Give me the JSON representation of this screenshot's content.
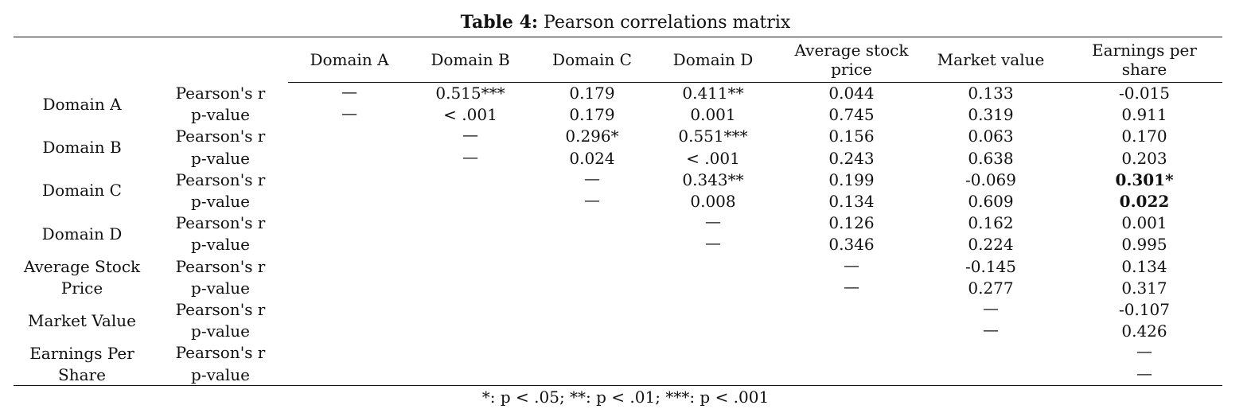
{
  "caption": {
    "label": "Table 4:",
    "title": " Pearson correlations matrix"
  },
  "columns": [
    "Domain A",
    "Domain B",
    "Domain C",
    "Domain D",
    "Average stock price",
    "Market value",
    "Earnings per share"
  ],
  "variables": [
    {
      "name": "Domain A",
      "r": [
        "—",
        "0.515***",
        "0.179",
        "0.411**",
        "0.044",
        "0.133",
        "-0.015"
      ],
      "p": [
        "—",
        "< .001",
        "0.179",
        "0.001",
        "0.745",
        "0.319",
        "0.911"
      ]
    },
    {
      "name": "Domain B",
      "r": [
        "",
        "—",
        "0.296*",
        "0.551***",
        "0.156",
        "0.063",
        "0.170"
      ],
      "p": [
        "",
        "—",
        "0.024",
        "< .001",
        "0.243",
        "0.638",
        "0.203"
      ]
    },
    {
      "name": "Domain C",
      "r": [
        "",
        "",
        "—",
        "0.343**",
        "0.199",
        "-0.069",
        "0.301*"
      ],
      "p": [
        "",
        "",
        "—",
        "0.008",
        "0.134",
        "0.609",
        "0.022"
      ],
      "bold_columns": [
        6
      ]
    },
    {
      "name": "Domain D",
      "r": [
        "",
        "",
        "",
        "—",
        "0.126",
        "0.162",
        "0.001"
      ],
      "p": [
        "",
        "",
        "",
        "—",
        "0.346",
        "0.224",
        "0.995"
      ]
    },
    {
      "name": "Average Stock Price",
      "r": [
        "",
        "",
        "",
        "",
        "—",
        "-0.145",
        "0.134"
      ],
      "p": [
        "",
        "",
        "",
        "",
        "—",
        "0.277",
        "0.317"
      ]
    },
    {
      "name": "Market Value",
      "r": [
        "",
        "",
        "",
        "",
        "",
        "—",
        "-0.107"
      ],
      "p": [
        "",
        "",
        "",
        "",
        "",
        "—",
        "0.426"
      ]
    },
    {
      "name": "Earnings Per Share",
      "r": [
        "",
        "",
        "",
        "",
        "",
        "",
        "—"
      ],
      "p": [
        "",
        "",
        "",
        "",
        "",
        "",
        "—"
      ]
    }
  ],
  "stat_labels": {
    "r": "Pearson's r",
    "p": "p-value"
  },
  "footnote": "*: p < .05; **: p < .01; ***: p < .001"
}
